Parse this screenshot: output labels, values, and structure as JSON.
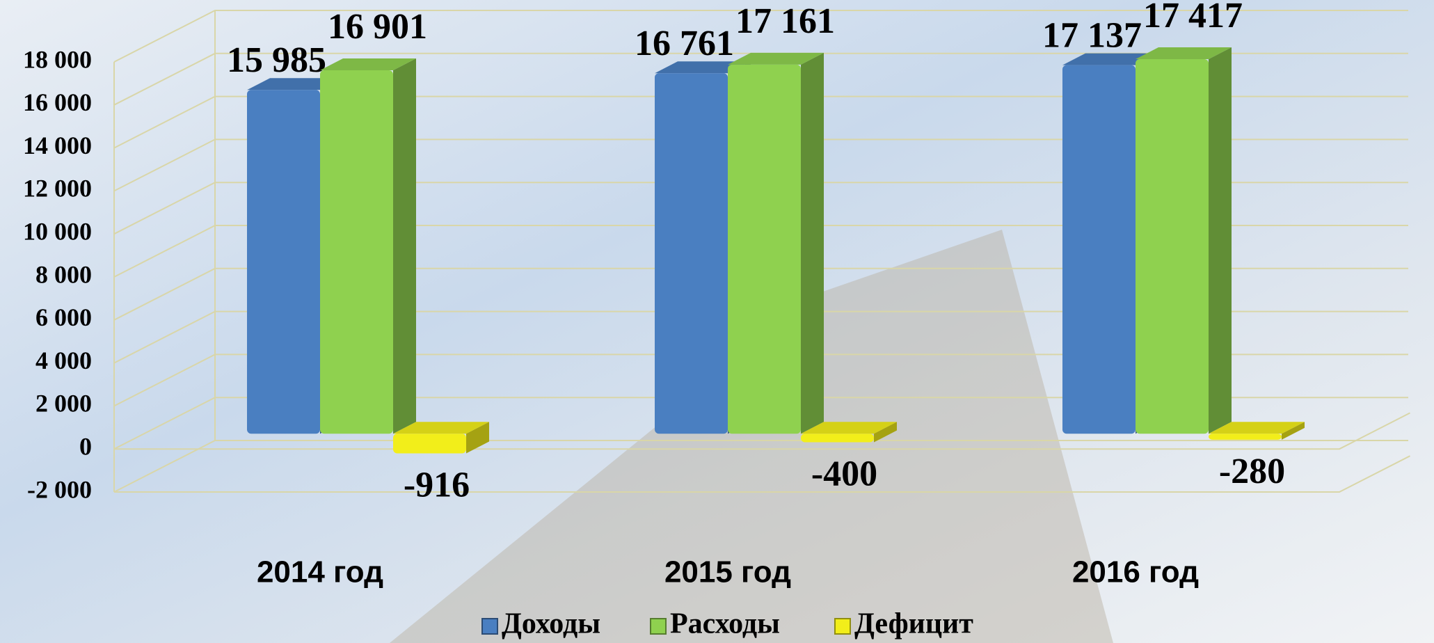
{
  "chart_data": {
    "type": "bar3d",
    "categories": [
      "2014 год",
      "2015 год",
      "2016 год"
    ],
    "series": [
      {
        "name": "Доходы",
        "color": "#4a7fc1",
        "values": [
          15985,
          16761,
          17137
        ],
        "value_labels": [
          "15 985",
          "16 761",
          "17 137"
        ]
      },
      {
        "name": "Расходы",
        "color": "#8fd14f",
        "values": [
          16901,
          17161,
          17417
        ],
        "value_labels": [
          "16 901",
          "17 161",
          "17 417"
        ]
      },
      {
        "name": "Дефицит",
        "color": "#f2ee1a",
        "values": [
          -916,
          -400,
          -280
        ],
        "value_labels": [
          "-916",
          "-400",
          "-280"
        ]
      }
    ],
    "ylim": [
      -2000,
      18000
    ],
    "yticks": [
      {
        "value": -2000,
        "label": "-2 000"
      },
      0,
      {
        "value": 2000,
        "label": "2 000"
      },
      {
        "value": 4000,
        "label": "4 000"
      },
      {
        "value": 6000,
        "label": "6 000"
      },
      {
        "value": 8000,
        "label": "8 000"
      },
      {
        "value": 10000,
        "label": "10 000"
      },
      {
        "value": 12000,
        "label": "12 000"
      },
      {
        "value": 14000,
        "label": "14 000"
      },
      {
        "value": 16000,
        "label": "16 000"
      },
      {
        "value": 18000,
        "label": "18 000"
      }
    ],
    "grid": true,
    "legend": "bottom"
  }
}
